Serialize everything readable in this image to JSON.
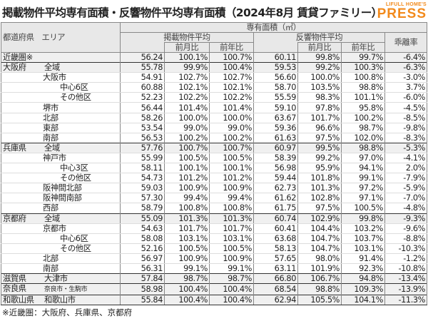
{
  "title": "掲載物件平均専有面積・反響物件平均専有面積（2024年8月 賃貸ファミリー）",
  "logo": {
    "top": "LIFULL HOME'S",
    "bottom": "PRESS",
    "color": "#f28a1c"
  },
  "header": {
    "region": "都道府県　エリア",
    "area": "専有面積（㎡）",
    "listed": "掲載物件平均",
    "response": "反響物件平均",
    "gap": "乖離率",
    "mom": "前月比",
    "yoy": "前年比"
  },
  "rows": [
    {
      "pref": "近畿圏※",
      "area": "",
      "v": [
        "56.24",
        "100.1%",
        "100.7%",
        "60.11",
        "99.8%",
        "99.7%",
        "-6.4%"
      ],
      "lvl": 0,
      "kind": "k"
    },
    {
      "pref": "大阪府",
      "area": "全域",
      "v": [
        "55.78",
        "99.9%",
        "100.4%",
        "59.53",
        "99.2%",
        "100.3%",
        "-6.3%"
      ],
      "lvl": 0,
      "kind": "g"
    },
    {
      "pref": "",
      "area": "大阪市",
      "v": [
        "54.91",
        "102.7%",
        "102.7%",
        "56.60",
        "100.0%",
        "100.8%",
        "-3.0%"
      ],
      "lvl": 1
    },
    {
      "pref": "",
      "area": "中心6区",
      "v": [
        "60.88",
        "102.1%",
        "102.1%",
        "58.70",
        "103.5%",
        "98.8%",
        "3.7%"
      ],
      "lvl": 2
    },
    {
      "pref": "",
      "area": "その他区",
      "v": [
        "52.23",
        "102.2%",
        "102.2%",
        "55.59",
        "98.3%",
        "101.1%",
        "-6.0%"
      ],
      "lvl": 2
    },
    {
      "pref": "",
      "area": "堺市",
      "v": [
        "56.44",
        "101.4%",
        "101.4%",
        "59.10",
        "97.8%",
        "95.8%",
        "-4.5%"
      ],
      "lvl": 1
    },
    {
      "pref": "",
      "area": "北部",
      "v": [
        "58.26",
        "100.0%",
        "100.0%",
        "63.67",
        "101.7%",
        "100.2%",
        "-8.5%"
      ],
      "lvl": 1
    },
    {
      "pref": "",
      "area": "東部",
      "v": [
        "53.54",
        "99.0%",
        "99.0%",
        "59.36",
        "96.6%",
        "98.7%",
        "-9.8%"
      ],
      "lvl": 1
    },
    {
      "pref": "",
      "area": "南部",
      "v": [
        "56.53",
        "100.2%",
        "100.2%",
        "61.63",
        "97.5%",
        "102.0%",
        "-8.3%"
      ],
      "lvl": 1
    },
    {
      "pref": "兵庫県",
      "area": "全域",
      "v": [
        "57.76",
        "100.7%",
        "100.7%",
        "60.97",
        "99.5%",
        "98.8%",
        "-5.3%"
      ],
      "lvl": 0,
      "kind": "g"
    },
    {
      "pref": "",
      "area": "神戸市",
      "v": [
        "55.99",
        "100.5%",
        "100.5%",
        "58.39",
        "99.2%",
        "97.0%",
        "-4.1%"
      ],
      "lvl": 1
    },
    {
      "pref": "",
      "area": "中心3区",
      "v": [
        "58.11",
        "100.1%",
        "100.1%",
        "56.98",
        "95.9%",
        "94.1%",
        "2.0%"
      ],
      "lvl": 2
    },
    {
      "pref": "",
      "area": "その他区",
      "v": [
        "54.73",
        "101.2%",
        "101.2%",
        "59.44",
        "101.8%",
        "99.1%",
        "-7.9%"
      ],
      "lvl": 2
    },
    {
      "pref": "",
      "area": "阪神間北部",
      "v": [
        "59.03",
        "100.9%",
        "100.9%",
        "62.73",
        "101.3%",
        "97.2%",
        "-5.9%"
      ],
      "lvl": 1
    },
    {
      "pref": "",
      "area": "阪神間南部",
      "v": [
        "57.30",
        "99.4%",
        "99.4%",
        "61.62",
        "102.8%",
        "97.1%",
        "-7.0%"
      ],
      "lvl": 1
    },
    {
      "pref": "",
      "area": "西部",
      "v": [
        "58.79",
        "100.8%",
        "100.8%",
        "61.75",
        "97.5%",
        "100.5%",
        "-4.8%"
      ],
      "lvl": 1
    },
    {
      "pref": "京都府",
      "area": "全域",
      "v": [
        "55.09",
        "101.3%",
        "101.3%",
        "60.74",
        "102.9%",
        "99.8%",
        "-9.3%"
      ],
      "lvl": 0,
      "kind": "g"
    },
    {
      "pref": "",
      "area": "京都市",
      "v": [
        "54.63",
        "101.7%",
        "101.7%",
        "60.41",
        "104.4%",
        "103.2%",
        "-9.6%"
      ],
      "lvl": 1
    },
    {
      "pref": "",
      "area": "中心6区",
      "v": [
        "58.08",
        "103.1%",
        "103.1%",
        "63.68",
        "104.7%",
        "103.7%",
        "-8.8%"
      ],
      "lvl": 2
    },
    {
      "pref": "",
      "area": "その他区",
      "v": [
        "52.16",
        "100.5%",
        "100.5%",
        "58.13",
        "104.7%",
        "103.1%",
        "-10.3%"
      ],
      "lvl": 2
    },
    {
      "pref": "",
      "area": "北部",
      "v": [
        "56.97",
        "100.9%",
        "100.9%",
        "57.65",
        "98.0%",
        "91.4%",
        "-1.2%"
      ],
      "lvl": 1
    },
    {
      "pref": "",
      "area": "南部",
      "v": [
        "56.31",
        "99.1%",
        "99.1%",
        "63.11",
        "101.9%",
        "92.3%",
        "-10.8%"
      ],
      "lvl": 1
    },
    {
      "pref": "滋賀県",
      "area": "大津市",
      "v": [
        "57.84",
        "98.7%",
        "98.7%",
        "66.80",
        "106.7%",
        "94.8%",
        "-13.4%"
      ],
      "lvl": 0,
      "kind": "s"
    },
    {
      "pref": "奈良県",
      "area": "奈良市・生駒市",
      "v": [
        "58.98",
        "100.4%",
        "100.4%",
        "68.54",
        "98.8%",
        "109.3%",
        "-13.9%"
      ],
      "lvl": 0,
      "kind": "s",
      "small": true
    },
    {
      "pref": "和歌山県",
      "area": "和歌山市",
      "v": [
        "55.84",
        "100.4%",
        "100.4%",
        "62.94",
        "105.5%",
        "104.1%",
        "-11.3%"
      ],
      "lvl": 0,
      "kind": "s"
    }
  ],
  "note": "※近畿圏：大阪府、兵庫県、京都府"
}
